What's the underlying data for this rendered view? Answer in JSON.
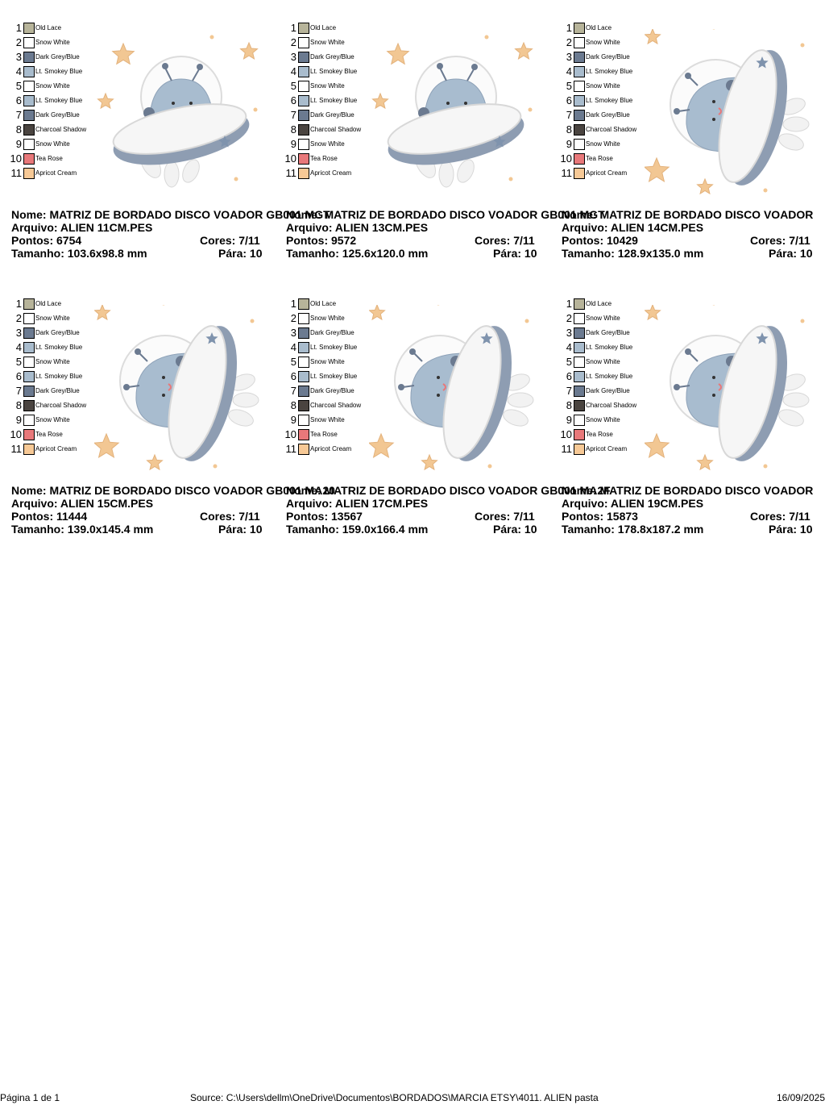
{
  "palette": [
    {
      "num": "1",
      "name": "Old Lace",
      "color": "#b7b49a"
    },
    {
      "num": "2",
      "name": "Snow White",
      "color": "#ffffff"
    },
    {
      "num": "3",
      "name": "Dark Grey/Blue",
      "color": "#6b7a90"
    },
    {
      "num": "4",
      "name": "Lt. Smokey Blue",
      "color": "#a9bccd"
    },
    {
      "num": "5",
      "name": "Snow White",
      "color": "#ffffff"
    },
    {
      "num": "6",
      "name": "Lt. Smokey Blue",
      "color": "#a9bccd"
    },
    {
      "num": "7",
      "name": "Dark Grey/Blue",
      "color": "#6b7a90"
    },
    {
      "num": "8",
      "name": "Charcoal Shadow",
      "color": "#4a4440"
    },
    {
      "num": "9",
      "name": "Snow White",
      "color": "#ffffff"
    },
    {
      "num": "10",
      "name": "Tea Rose",
      "color": "#e8787a"
    },
    {
      "num": "11",
      "name": "Apricot Cream",
      "color": "#f7c996"
    }
  ],
  "cards": [
    {
      "nome": "Nome: MATRIZ DE BORDADO DISCO VOADOR GB001 MGT",
      "arquivo": "Arquivo: ALIEN 11CM.PES",
      "pontos": "Pontos: 6754",
      "cores": "Cores: 7/11",
      "tamanho": "Tamanho: 103.6x98.8 mm",
      "para": "Pára: 10",
      "art_variant": "saucer-left"
    },
    {
      "nome": "Nome: MATRIZ DE BORDADO DISCO VOADOR GB001 MGT",
      "arquivo": "Arquivo: ALIEN 13CM.PES",
      "pontos": "Pontos: 9572",
      "cores": "Cores: 7/11",
      "tamanho": "Tamanho: 125.6x120.0 mm",
      "para": "Pára: 10",
      "art_variant": "saucer-left"
    },
    {
      "nome": "Nome: MATRIZ DE BORDADO DISCO VOADOR",
      "arquivo": "Arquivo: ALIEN 14CM.PES",
      "pontos": "Pontos: 10429",
      "cores": "Cores: 7/11",
      "tamanho": "Tamanho: 128.9x135.0 mm",
      "para": "Pára: 10",
      "art_variant": "saucer-right"
    },
    {
      "nome": "Nome: MATRIZ DE BORDADO DISCO VOADOR GB001 MA20",
      "arquivo": "Arquivo: ALIEN 15CM.PES",
      "pontos": "Pontos: 11444",
      "cores": "Cores: 7/11",
      "tamanho": "Tamanho: 139.0x145.4 mm",
      "para": "Pára: 10",
      "art_variant": "saucer-right"
    },
    {
      "nome": "Nome: MATRIZ DE BORDADO DISCO VOADOR GB001 MA2F",
      "arquivo": "Arquivo: ALIEN 17CM.PES",
      "pontos": "Pontos: 13567",
      "cores": "Cores: 7/11",
      "tamanho": "Tamanho: 159.0x166.4 mm",
      "para": "Pára: 10",
      "art_variant": "saucer-right"
    },
    {
      "nome": "Nome: MATRIZ DE BORDADO DISCO VOADOR",
      "arquivo": "Arquivo: ALIEN 19CM.PES",
      "pontos": "Pontos: 15873",
      "cores": "Cores: 7/11",
      "tamanho": "Tamanho: 178.8x187.2 mm",
      "para": "Pára: 10",
      "art_variant": "saucer-right"
    }
  ],
  "footer": {
    "page": "Página 1 de 1",
    "source": "Source: C:\\Users\\dellm\\OneDrive\\Documentos\\BORDADOS\\MARCIA ETSY\\4011. ALIEN pasta",
    "date": "16/09/2025"
  }
}
